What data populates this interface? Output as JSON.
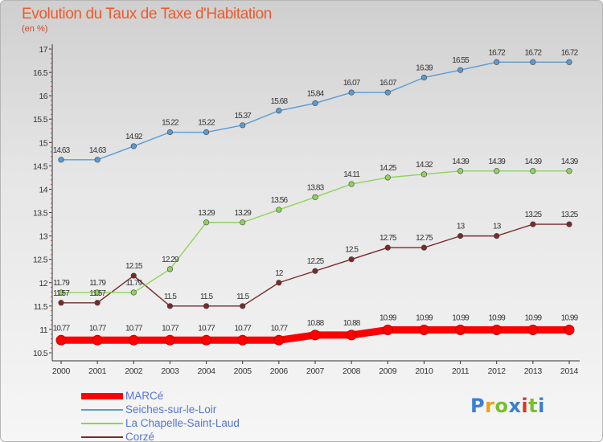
{
  "title": "Evolution du Taux de Taxe d'Habitation",
  "unit_label": "(en %)",
  "logo": {
    "text": "Proxiti",
    "colors": [
      "#3a7fd0",
      "#e8a21c",
      "#7abf2a",
      "#3a7fd0",
      "#d8342a",
      "#7abf2a",
      "#3a7fd0"
    ]
  },
  "chart_data": {
    "type": "line",
    "title": "Evolution du Taux de Taxe d'Habitation",
    "ylabel": "(en %)",
    "xlabel": "",
    "x": [
      "2000",
      "2001",
      "2002",
      "2003",
      "2004",
      "2005",
      "2006",
      "2007",
      "2008",
      "2009",
      "2010",
      "2011",
      "2012",
      "2013",
      "2014"
    ],
    "ylim": [
      10.5,
      17
    ],
    "yticks": [
      "10.5",
      "11",
      "11.5",
      "12",
      "12.5",
      "13",
      "13.5",
      "14",
      "14.5",
      "15",
      "15.5",
      "16",
      "16.5",
      "17"
    ],
    "grid": false,
    "legend_position": "bottom-left",
    "series": [
      {
        "name": "MARCé",
        "color": "#ff0000",
        "emphasis": true,
        "values": [
          10.77,
          10.77,
          10.77,
          10.77,
          10.77,
          10.77,
          10.77,
          10.88,
          10.88,
          10.99,
          10.99,
          10.99,
          10.99,
          10.99,
          10.99
        ],
        "labels": [
          "10.77",
          "10.77",
          "10.77",
          "10.77",
          "10.77",
          "10.77",
          "10.77",
          "10.88",
          "10.88",
          "10.99",
          "10.99",
          "10.99",
          "10.99",
          "10.99",
          "10.99"
        ]
      },
      {
        "name": "Seiches-sur-le-Loir",
        "color": "#5a9bd5",
        "values": [
          14.63,
          14.63,
          14.92,
          15.22,
          15.22,
          15.37,
          15.68,
          15.84,
          16.07,
          16.07,
          16.39,
          16.55,
          16.72,
          16.72,
          16.72
        ],
        "labels": [
          "14.63",
          "14.63",
          "14.92",
          "15.22",
          "15.22",
          "15.37",
          "15.68",
          "15.84",
          "16.07",
          "16.07",
          "16.39",
          "16.55",
          "16.72",
          "16.72",
          "16.72"
        ]
      },
      {
        "name": "La Chapelle-Saint-Laud",
        "color": "#8fd35a",
        "values": [
          11.79,
          11.79,
          11.79,
          12.29,
          13.29,
          13.29,
          13.56,
          13.83,
          14.11,
          14.25,
          14.32,
          14.39,
          14.39,
          14.39,
          14.39
        ],
        "labels": [
          "11.79",
          "11.79",
          "11.79",
          "12.29",
          "13.29",
          "13.29",
          "13.56",
          "13.83",
          "14.11",
          "14.25",
          "14.32",
          "14.39",
          "14.39",
          "14.39",
          "14.39"
        ]
      },
      {
        "name": "Corzé",
        "color": "#7a2a2a",
        "values": [
          11.57,
          11.57,
          12.15,
          11.5,
          11.5,
          11.5,
          12,
          12.25,
          12.5,
          12.75,
          12.75,
          13,
          13,
          13.25,
          13.25
        ],
        "labels": [
          "11.57",
          "11.57",
          "12.15",
          "11.5",
          "11.5",
          "11.5",
          "12",
          "12.25",
          "12.5",
          "12.75",
          "12.75",
          "13",
          "13",
          "13.25",
          "13.25"
        ]
      }
    ]
  }
}
